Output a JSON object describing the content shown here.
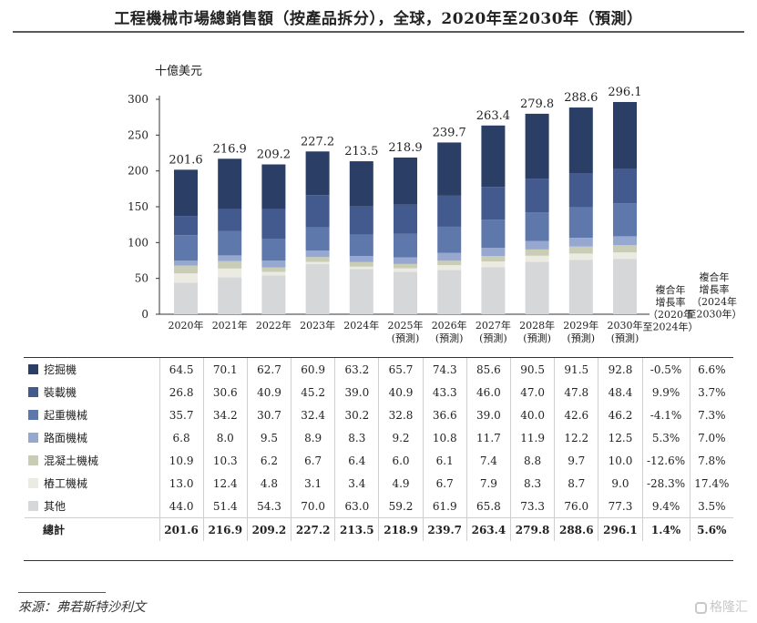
{
  "title": "工程機械市場總銷售額（按產品拆分），全球，2020年至2030年（預測）",
  "source": "來源：弗若斯特沙利文",
  "watermark": "格隆汇",
  "chart_data": {
    "type": "bar",
    "stacked": true,
    "title": "工程機械市場總銷售額（按產品拆分），全球，2020年至2030年（預測）",
    "ylabel": "十億美元",
    "ylim": [
      0,
      300
    ],
    "yticks": [
      0,
      50,
      100,
      150,
      200,
      250,
      300
    ],
    "grid": false,
    "categories": [
      "2020年",
      "2021年",
      "2022年",
      "2023年",
      "2024年",
      "2025年",
      "2026年",
      "2027年",
      "2028年",
      "2029年",
      "2030年"
    ],
    "category_notes": [
      "",
      "",
      "",
      "",
      "",
      "(預測)",
      "(預測)",
      "(預測)",
      "(預測)",
      "(預測)",
      "(預測)"
    ],
    "series": [
      {
        "name": "挖掘機",
        "color": "#2b3f66",
        "values": [
          64.5,
          70.1,
          62.7,
          60.9,
          63.2,
          65.7,
          74.3,
          85.6,
          90.5,
          91.5,
          92.8
        ]
      },
      {
        "name": "裝載機",
        "color": "#435a8f",
        "values": [
          26.8,
          30.6,
          40.9,
          45.2,
          39.0,
          40.9,
          43.3,
          46.0,
          47.0,
          47.8,
          48.4
        ]
      },
      {
        "name": "起重機械",
        "color": "#5f78ac",
        "values": [
          35.7,
          34.2,
          30.7,
          32.4,
          30.2,
          32.8,
          36.6,
          39.0,
          40.0,
          42.6,
          46.2
        ]
      },
      {
        "name": "路面機械",
        "color": "#97a8d0",
        "values": [
          6.8,
          8.0,
          9.5,
          8.9,
          8.3,
          9.2,
          10.8,
          11.7,
          11.9,
          12.2,
          12.5
        ]
      },
      {
        "name": "混凝土機械",
        "color": "#c9cdb6",
        "values": [
          10.9,
          10.3,
          6.2,
          6.7,
          6.4,
          6.0,
          6.1,
          7.4,
          8.8,
          9.7,
          10.0
        ]
      },
      {
        "name": "樁工機械",
        "color": "#ebebe2",
        "values": [
          13.0,
          12.4,
          4.8,
          3.1,
          3.4,
          4.9,
          6.7,
          7.9,
          8.3,
          8.7,
          9.0
        ]
      },
      {
        "name": "其他",
        "color": "#d6d7d9",
        "values": [
          44.0,
          51.4,
          54.3,
          70.0,
          63.0,
          59.2,
          61.9,
          65.8,
          73.3,
          76.0,
          77.3
        ]
      }
    ],
    "totals_label": "總計",
    "totals": [
      "201.6",
      "216.9",
      "209.2",
      "227.2",
      "213.5",
      "218.9",
      "239.7",
      "263.4",
      "279.8",
      "288.6",
      "296.1"
    ],
    "cagr_headers": [
      "複合年增長率（2020年至2024年）",
      "複合年增長率（2024年至2030年）"
    ],
    "cagr_header_lines": [
      [
        "複合年",
        "增長率",
        "（2020年",
        "至2024年）"
      ],
      [
        "複合年",
        "增長率",
        "（2024年",
        "至2030年）"
      ]
    ],
    "cagr": [
      [
        "-0.5%",
        "6.6%"
      ],
      [
        "9.9%",
        "3.7%"
      ],
      [
        "-4.1%",
        "7.3%"
      ],
      [
        "5.3%",
        "7.0%"
      ],
      [
        "-12.6%",
        "7.8%"
      ],
      [
        "-28.3%",
        "17.4%"
      ],
      [
        "9.4%",
        "3.5%"
      ]
    ],
    "cagr_total": [
      "1.4%",
      "5.6%"
    ]
  }
}
